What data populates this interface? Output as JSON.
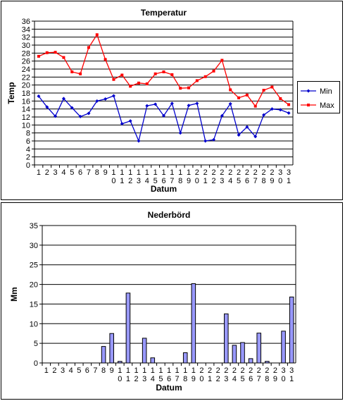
{
  "chart_data": [
    {
      "id": "temp",
      "type": "line",
      "title": "Temperatur",
      "xlabel": "Datum",
      "ylabel": "Temp",
      "ylim": [
        0,
        36
      ],
      "ytick_step": 2,
      "grid": true,
      "legend": "right",
      "categories": [
        "1",
        "2",
        "3",
        "4",
        "5",
        "6",
        "7",
        "8",
        "9",
        "10",
        "11",
        "12",
        "13",
        "14",
        "15",
        "16",
        "17",
        "18",
        "19",
        "20",
        "21",
        "22",
        "23",
        "24",
        "25",
        "26",
        "27",
        "28",
        "29",
        "30",
        "31"
      ],
      "series": [
        {
          "name": "Min",
          "color": "#0000cc",
          "marker": "diamond",
          "values": [
            17.2,
            14.5,
            12.2,
            16.6,
            14.3,
            12.1,
            12.9,
            16.0,
            16.5,
            17.3,
            10.3,
            11.0,
            6.0,
            14.8,
            15.2,
            12.3,
            15.4,
            8.0,
            14.9,
            15.4,
            6.0,
            6.3,
            12.3,
            15.3,
            7.5,
            9.5,
            7.1,
            12.5,
            14.0,
            13.8,
            13.0
          ]
        },
        {
          "name": "Max",
          "color": "#ff0000",
          "marker": "square",
          "values": [
            27.2,
            28.1,
            28.2,
            26.9,
            23.3,
            22.8,
            29.4,
            32.6,
            26.4,
            21.4,
            22.5,
            19.7,
            20.5,
            20.3,
            22.8,
            23.3,
            22.6,
            19.2,
            19.3,
            21.1,
            22.1,
            23.5,
            26.2,
            18.8,
            16.8,
            17.5,
            14.7,
            18.7,
            19.5,
            16.6,
            15.1
          ]
        }
      ]
    },
    {
      "id": "rain",
      "type": "bar",
      "title": "Nederbörd",
      "xlabel": "Datum",
      "ylabel": "Mm",
      "ylim": [
        0,
        35
      ],
      "ytick_step": 5,
      "grid": true,
      "bar_color": "#9999ff",
      "categories": [
        "1",
        "2",
        "3",
        "4",
        "5",
        "6",
        "7",
        "8",
        "9",
        "10",
        "11",
        "12",
        "13",
        "14",
        "15",
        "16",
        "17",
        "18",
        "19",
        "20",
        "21",
        "22",
        "23",
        "24",
        "25",
        "26",
        "27",
        "28",
        "29",
        "30",
        "31"
      ],
      "values": [
        0,
        0,
        0,
        0,
        0,
        0,
        0,
        4.2,
        7.5,
        0.4,
        17.8,
        0,
        6.3,
        1.3,
        0,
        0,
        0,
        2.6,
        20.2,
        0,
        0,
        0,
        12.5,
        4.5,
        5.2,
        1.1,
        7.6,
        0.4,
        0,
        8.1,
        16.8
      ]
    }
  ]
}
